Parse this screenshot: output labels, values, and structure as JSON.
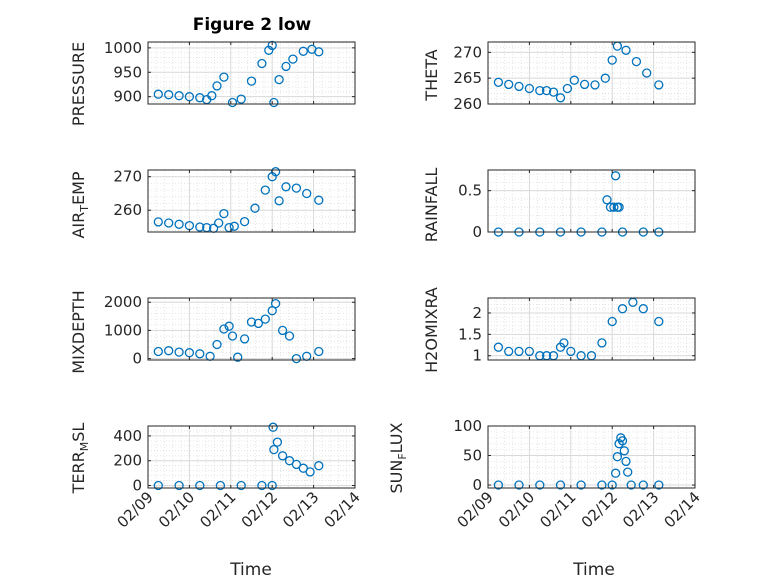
{
  "figure_title": "Figure 2 low",
  "chart_data": [
    {
      "type": "scatter",
      "ylabel": "PRESSURE",
      "ylim": [
        885,
        1012
      ],
      "yticks": [
        900,
        950,
        1000
      ],
      "x": [
        "02/09 06:00",
        "02/09 12:00",
        "02/09 18:00",
        "02/10 00:00",
        "02/10 06:00",
        "02/10 10:00",
        "02/10 13:00",
        "02/10 16:00",
        "02/10 20:00",
        "02/11 01:00",
        "02/11 06:00",
        "02/11 12:00",
        "02/11 18:00",
        "02/11 22:00",
        "02/12 00:00",
        "02/12 01:00",
        "02/12 04:00",
        "02/12 08:00",
        "02/12 12:00",
        "02/12 18:00",
        "02/12 23:00",
        "02/13 03:00"
      ],
      "y": [
        905,
        904,
        902,
        900,
        898,
        894,
        902,
        922,
        940,
        888,
        895,
        932,
        968,
        995,
        1005,
        888,
        935,
        962,
        977,
        993,
        997,
        992
      ]
    },
    {
      "type": "scatter",
      "ylabel": "THETA",
      "ylim": [
        260,
        272
      ],
      "yticks": [
        260,
        265,
        270
      ],
      "x": [
        "02/09 06:00",
        "02/09 12:00",
        "02/09 18:00",
        "02/10 00:00",
        "02/10 06:00",
        "02/10 10:00",
        "02/10 14:00",
        "02/10 18:00",
        "02/10 22:00",
        "02/11 02:00",
        "02/11 08:00",
        "02/11 14:00",
        "02/11 20:00",
        "02/12 00:00",
        "02/12 03:00",
        "02/12 08:00",
        "02/12 14:00",
        "02/12 20:00",
        "02/13 03:00"
      ],
      "y": [
        264.2,
        263.8,
        263.4,
        263.0,
        262.6,
        262.6,
        262.3,
        261.2,
        263.0,
        264.6,
        263.8,
        263.7,
        265.0,
        268.5,
        271.2,
        270.4,
        268.2,
        266.0,
        263.7
      ]
    },
    {
      "type": "scatter",
      "ylabel": "AIR_TEMP",
      "ylim": [
        253.5,
        272
      ],
      "yticks": [
        260,
        270
      ],
      "x": [
        "02/09 06:00",
        "02/09 12:00",
        "02/09 18:00",
        "02/10 00:00",
        "02/10 06:00",
        "02/10 10:00",
        "02/10 14:00",
        "02/10 17:00",
        "02/10 20:00",
        "02/10 23:00",
        "02/11 02:00",
        "02/11 08:00",
        "02/11 14:00",
        "02/11 20:00",
        "02/12 00:00",
        "02/12 02:00",
        "02/12 04:00",
        "02/12 08:00",
        "02/12 14:00",
        "02/12 20:00",
        "02/13 03:00"
      ],
      "y": [
        256.5,
        256.2,
        255.8,
        255.4,
        255.0,
        254.8,
        254.6,
        256.2,
        259.0,
        254.8,
        255.2,
        256.6,
        260.6,
        266.0,
        270.0,
        271.5,
        262.8,
        267.0,
        266.6,
        265.0,
        263.0
      ]
    },
    {
      "type": "scatter",
      "ylabel": "RAINFALL",
      "ylim": [
        0,
        0.75
      ],
      "yticks": [
        0,
        0.5
      ],
      "x": [
        "02/09 06:00",
        "02/09 18:00",
        "02/10 06:00",
        "02/10 18:00",
        "02/11 06:00",
        "02/11 18:00",
        "02/11 21:00",
        "02/11 23:00",
        "02/12 01:00",
        "02/12 02:00",
        "02/12 03:00",
        "02/12 04:00",
        "02/12 06:00",
        "02/12 18:00",
        "02/13 03:00"
      ],
      "y": [
        0,
        0,
        0,
        0,
        0,
        0,
        0.39,
        0.3,
        0.3,
        0.68,
        0.3,
        0.3,
        0,
        0,
        0
      ]
    },
    {
      "type": "scatter",
      "ylabel": "MIXDEPTH",
      "ylim": [
        -50,
        2150
      ],
      "yticks": [
        0,
        1000,
        2000
      ],
      "x": [
        "02/09 06:00",
        "02/09 12:00",
        "02/09 18:00",
        "02/10 00:00",
        "02/10 06:00",
        "02/10 12:00",
        "02/10 16:00",
        "02/10 20:00",
        "02/10 23:00",
        "02/11 01:00",
        "02/11 04:00",
        "02/11 08:00",
        "02/11 12:00",
        "02/11 16:00",
        "02/11 20:00",
        "02/12 00:00",
        "02/12 02:00",
        "02/12 06:00",
        "02/12 10:00",
        "02/12 14:00",
        "02/12 20:00",
        "02/13 03:00"
      ],
      "y": [
        250,
        280,
        230,
        210,
        170,
        80,
        500,
        1050,
        1150,
        800,
        50,
        700,
        1300,
        1250,
        1400,
        1700,
        1950,
        1000,
        800,
        0,
        80,
        250
      ]
    },
    {
      "type": "scatter",
      "ylabel": "H2OMIXRA",
      "ylim": [
        0.9,
        2.35
      ],
      "yticks": [
        1,
        1.5,
        2
      ],
      "x": [
        "02/09 06:00",
        "02/09 12:00",
        "02/09 18:00",
        "02/10 00:00",
        "02/10 06:00",
        "02/10 10:00",
        "02/10 14:00",
        "02/10 18:00",
        "02/10 20:00",
        "02/11 00:00",
        "02/11 06:00",
        "02/11 12:00",
        "02/11 18:00",
        "02/12 00:00",
        "02/12 06:00",
        "02/12 12:00",
        "02/12 18:00",
        "02/13 03:00"
      ],
      "y": [
        1.2,
        1.1,
        1.1,
        1.1,
        1.0,
        1.0,
        1.0,
        1.2,
        1.3,
        1.1,
        1.0,
        1.0,
        1.3,
        1.8,
        2.1,
        2.25,
        2.1,
        1.8
      ]
    },
    {
      "type": "scatter",
      "ylabel": "TERR_MSL",
      "ylim": [
        -20,
        480
      ],
      "yticks": [
        0,
        200,
        400
      ],
      "x": [
        "02/09 06:00",
        "02/09 18:00",
        "02/10 06:00",
        "02/10 18:00",
        "02/11 06:00",
        "02/11 18:00",
        "02/12 00:00",
        "02/12 00:30",
        "02/12 01:00",
        "02/12 03:00",
        "02/12 06:00",
        "02/12 10:00",
        "02/12 14:00",
        "02/12 18:00",
        "02/12 22:00",
        "02/13 03:00"
      ],
      "y": [
        0,
        0,
        0,
        0,
        0,
        0,
        0,
        470,
        290,
        350,
        240,
        200,
        170,
        140,
        110,
        160
      ]
    },
    {
      "type": "scatter",
      "ylabel": "SUN_FLUX",
      "ylim": [
        -5,
        100
      ],
      "yticks": [
        0,
        50,
        100
      ],
      "x": [
        "02/09 06:00",
        "02/09 18:00",
        "02/10 06:00",
        "02/10 18:00",
        "02/11 06:00",
        "02/11 18:00",
        "02/12 00:00",
        "02/12 02:00",
        "02/12 03:00",
        "02/12 04:00",
        "02/12 05:00",
        "02/12 06:00",
        "02/12 07:00",
        "02/12 08:00",
        "02/12 09:00",
        "02/12 11:00",
        "02/12 18:00",
        "02/13 03:00"
      ],
      "y": [
        0,
        0,
        0,
        0,
        0,
        0,
        0,
        20,
        48,
        70,
        80,
        75,
        58,
        40,
        22,
        0,
        0,
        0
      ]
    }
  ],
  "axes_common": {
    "xlim": [
      "02/09 00:00",
      "02/14 00:00"
    ],
    "xticks": [
      "02/09",
      "02/10",
      "02/11",
      "02/12",
      "02/13",
      "02/14"
    ],
    "xlabel": "Time",
    "grid": true,
    "marker": "open-circle",
    "marker_color": "#0072bd"
  }
}
